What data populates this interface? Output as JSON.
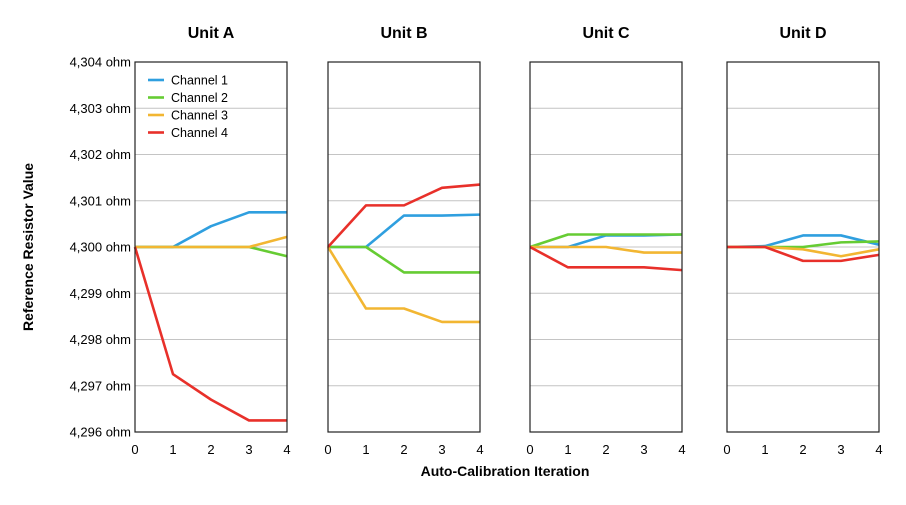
{
  "chart_data": {
    "type": "line",
    "xlabel": "Auto-Calibration Iteration",
    "ylabel": "Reference Resistor Value",
    "x": [
      0,
      1,
      2,
      3,
      4
    ],
    "ylim": [
      4296,
      4304
    ],
    "yticks": [
      4296,
      4297,
      4298,
      4299,
      4300,
      4301,
      4302,
      4303,
      4304
    ],
    "ytick_labels": [
      "4,296 ohm",
      "4,297 ohm",
      "4,298 ohm",
      "4,299 ohm",
      "4,300 ohm",
      "4,301 ohm",
      "4,302 ohm",
      "4,303 ohm",
      "4,304 ohm"
    ],
    "grid": true,
    "legend": {
      "placement": "top-left",
      "entries": [
        "Channel 1",
        "Channel 2",
        "Channel 3",
        "Channel 4"
      ]
    },
    "colors": {
      "Channel 1": "#2f9fdf",
      "Channel 2": "#66cc33",
      "Channel 3": "#f2b632",
      "Channel 4": "#e8302a"
    },
    "panels": [
      {
        "title": "Unit A",
        "series": [
          {
            "name": "Channel 1",
            "values": [
              4300.0,
              4300.0,
              4300.45,
              4300.75,
              4300.75
            ]
          },
          {
            "name": "Channel 2",
            "values": [
              4300.0,
              4300.0,
              4300.0,
              4300.0,
              4299.8
            ]
          },
          {
            "name": "Channel 3",
            "values": [
              4300.0,
              4300.0,
              4300.0,
              4300.0,
              4300.22
            ]
          },
          {
            "name": "Channel 4",
            "values": [
              4300.0,
              4297.25,
              4296.7,
              4296.25,
              4296.25
            ]
          }
        ]
      },
      {
        "title": "Unit B",
        "series": [
          {
            "name": "Channel 1",
            "values": [
              4300.0,
              4300.0,
              4300.68,
              4300.68,
              4300.7
            ]
          },
          {
            "name": "Channel 2",
            "values": [
              4300.0,
              4300.0,
              4299.45,
              4299.45,
              4299.45
            ]
          },
          {
            "name": "Channel 3",
            "values": [
              4300.0,
              4298.67,
              4298.67,
              4298.38,
              4298.38
            ]
          },
          {
            "name": "Channel 4",
            "values": [
              4300.0,
              4300.9,
              4300.9,
              4301.28,
              4301.35
            ]
          }
        ]
      },
      {
        "title": "Unit C",
        "series": [
          {
            "name": "Channel 1",
            "values": [
              4300.0,
              4300.0,
              4300.25,
              4300.25,
              4300.27
            ]
          },
          {
            "name": "Channel 2",
            "values": [
              4300.0,
              4300.27,
              4300.27,
              4300.27,
              4300.27
            ]
          },
          {
            "name": "Channel 3",
            "values": [
              4300.0,
              4300.0,
              4300.0,
              4299.88,
              4299.88
            ]
          },
          {
            "name": "Channel 4",
            "values": [
              4300.0,
              4299.56,
              4299.56,
              4299.56,
              4299.5
            ]
          }
        ]
      },
      {
        "title": "Unit D",
        "series": [
          {
            "name": "Channel 1",
            "values": [
              4300.0,
              4300.02,
              4300.25,
              4300.25,
              4300.05
            ]
          },
          {
            "name": "Channel 2",
            "values": [
              4300.0,
              4300.0,
              4300.0,
              4300.1,
              4300.12
            ]
          },
          {
            "name": "Channel 3",
            "values": [
              4300.0,
              4300.0,
              4299.95,
              4299.8,
              4299.95
            ]
          },
          {
            "name": "Channel 4",
            "values": [
              4300.0,
              4300.0,
              4299.7,
              4299.7,
              4299.83
            ]
          }
        ]
      }
    ]
  }
}
